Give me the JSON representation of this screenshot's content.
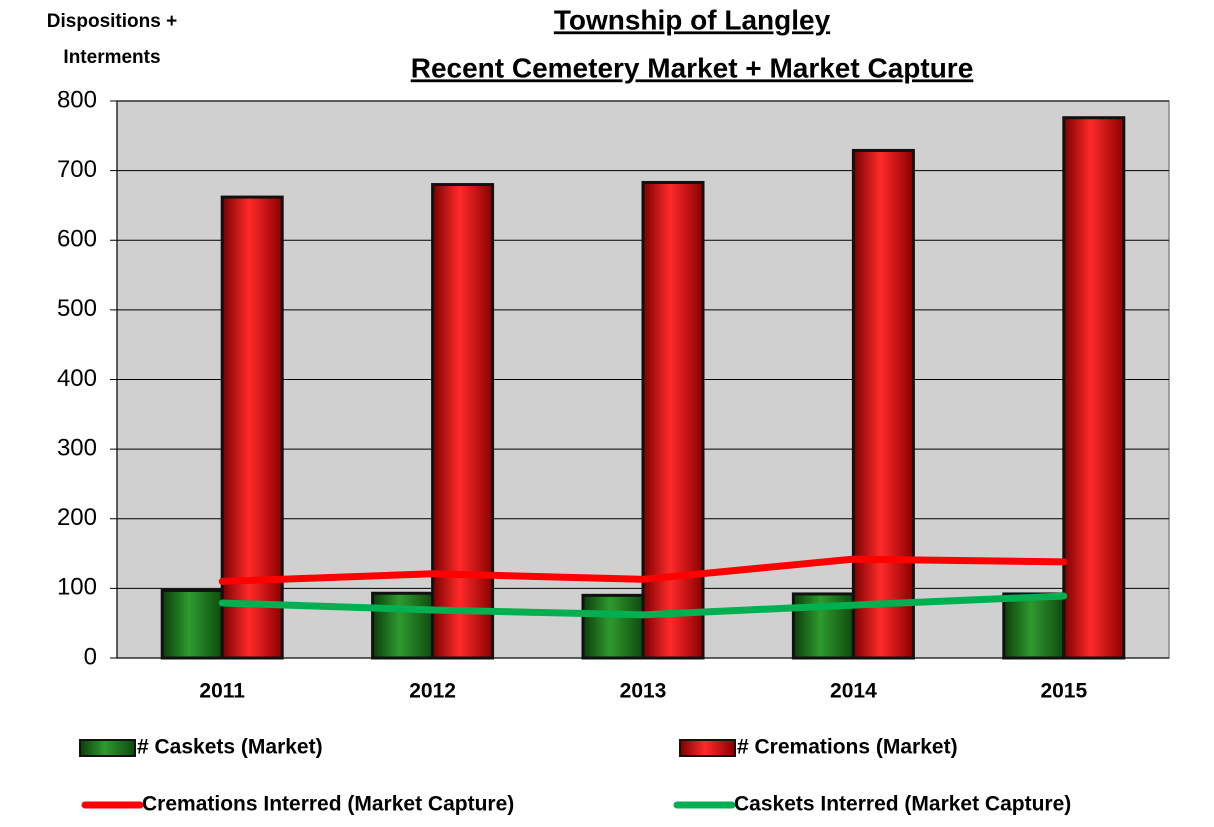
{
  "chart_data": {
    "type": "bar",
    "title": [
      "Township of Langley",
      "Recent Cemetery Market + Market Capture"
    ],
    "y_label": [
      "Dispositions +",
      "Interments"
    ],
    "categories": [
      "2011",
      "2012",
      "2013",
      "2014",
      "2015"
    ],
    "series": [
      {
        "name": "# Caskets (Market)",
        "type": "bar",
        "color": "#1f7a1f",
        "values": [
          97,
          93,
          90,
          92,
          92
        ]
      },
      {
        "name": "# Cremations (Market)",
        "type": "bar",
        "color": "#dd0000",
        "values": [
          662,
          680,
          683,
          729,
          776
        ]
      },
      {
        "name": "Cremations Interred (Market Capture)",
        "type": "line",
        "color": "#ff0000",
        "values": [
          110,
          121,
          113,
          142,
          138
        ]
      },
      {
        "name": "Caskets Interred (Market Capture)",
        "type": "line",
        "color": "#00b050",
        "values": [
          79,
          69,
          62,
          76,
          89
        ]
      }
    ],
    "ylim": [
      0,
      800
    ],
    "yticks": [
      0,
      100,
      200,
      300,
      400,
      500,
      600,
      700,
      800
    ],
    "grid": true
  }
}
